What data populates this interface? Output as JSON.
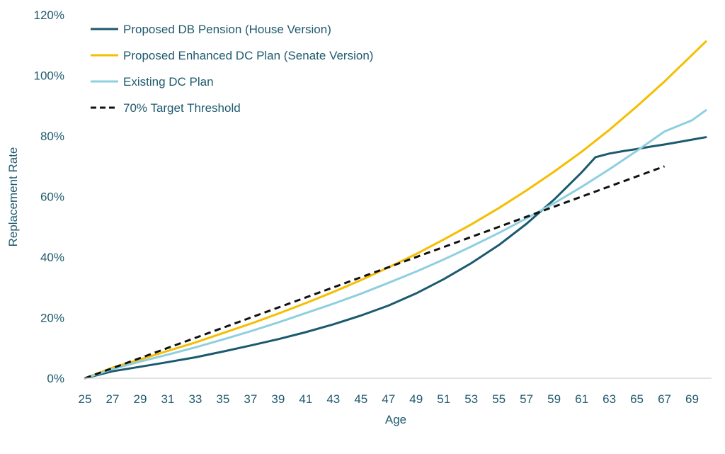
{
  "chart_data": {
    "type": "line",
    "title": "",
    "xlabel": "Age",
    "ylabel": "Replacement Rate",
    "xlim": [
      25,
      70
    ],
    "ylim": [
      0,
      1.2
    ],
    "x_ticks": [
      "25",
      "27",
      "29",
      "31",
      "33",
      "35",
      "37",
      "39",
      "41",
      "43",
      "45",
      "47",
      "49",
      "51",
      "53",
      "55",
      "57",
      "59",
      "61",
      "63",
      "65",
      "67",
      "69"
    ],
    "y_ticks": [
      "0%",
      "20%",
      "40%",
      "60%",
      "80%",
      "100%",
      "120%"
    ],
    "grid": false,
    "legend_position": "top-left",
    "series": [
      {
        "name": "Proposed DB Pension (House Version)",
        "color": "#1b5a6e",
        "dash": "solid",
        "x": [
          25,
          27,
          29,
          31,
          33,
          35,
          37,
          39,
          41,
          43,
          45,
          47,
          49,
          51,
          53,
          55,
          57,
          59,
          61,
          62,
          63,
          64,
          65,
          66,
          67,
          68,
          69,
          70
        ],
        "y": [
          0,
          0.023,
          0.038,
          0.053,
          0.069,
          0.088,
          0.108,
          0.129,
          0.152,
          0.178,
          0.207,
          0.24,
          0.28,
          0.327,
          0.38,
          0.44,
          0.51,
          0.59,
          0.68,
          0.73,
          0.742,
          0.75,
          0.757,
          0.765,
          0.772,
          0.78,
          0.788,
          0.796
        ]
      },
      {
        "name": "Proposed Enhanced DC Plan (Senate Version)",
        "color": "#f5be00",
        "dash": "solid",
        "x": [
          25,
          27,
          29,
          31,
          33,
          35,
          37,
          39,
          41,
          43,
          45,
          47,
          49,
          51,
          53,
          55,
          57,
          59,
          61,
          63,
          65,
          67,
          69,
          70
        ],
        "y": [
          0,
          0.035,
          0.062,
          0.09,
          0.118,
          0.149,
          0.18,
          0.213,
          0.248,
          0.285,
          0.324,
          0.366,
          0.41,
          0.458,
          0.508,
          0.562,
          0.62,
          0.682,
          0.748,
          0.82,
          0.898,
          0.98,
          1.068,
          1.112
        ]
      },
      {
        "name": "Existing DC Plan",
        "color": "#8fcfe0",
        "dash": "solid",
        "x": [
          25,
          27,
          29,
          31,
          33,
          35,
          37,
          39,
          41,
          43,
          45,
          47,
          49,
          51,
          53,
          55,
          57,
          59,
          61,
          63,
          65,
          67,
          69,
          70
        ],
        "y": [
          0,
          0.03,
          0.055,
          0.078,
          0.102,
          0.128,
          0.155,
          0.184,
          0.215,
          0.246,
          0.279,
          0.315,
          0.352,
          0.392,
          0.435,
          0.48,
          0.528,
          0.578,
          0.632,
          0.69,
          0.751,
          0.815,
          0.852,
          0.885
        ]
      },
      {
        "name": "70% Target Threshold",
        "color": "#111111",
        "dash": "dashed",
        "x": [
          25,
          67
        ],
        "y": [
          0,
          0.7
        ]
      }
    ]
  }
}
